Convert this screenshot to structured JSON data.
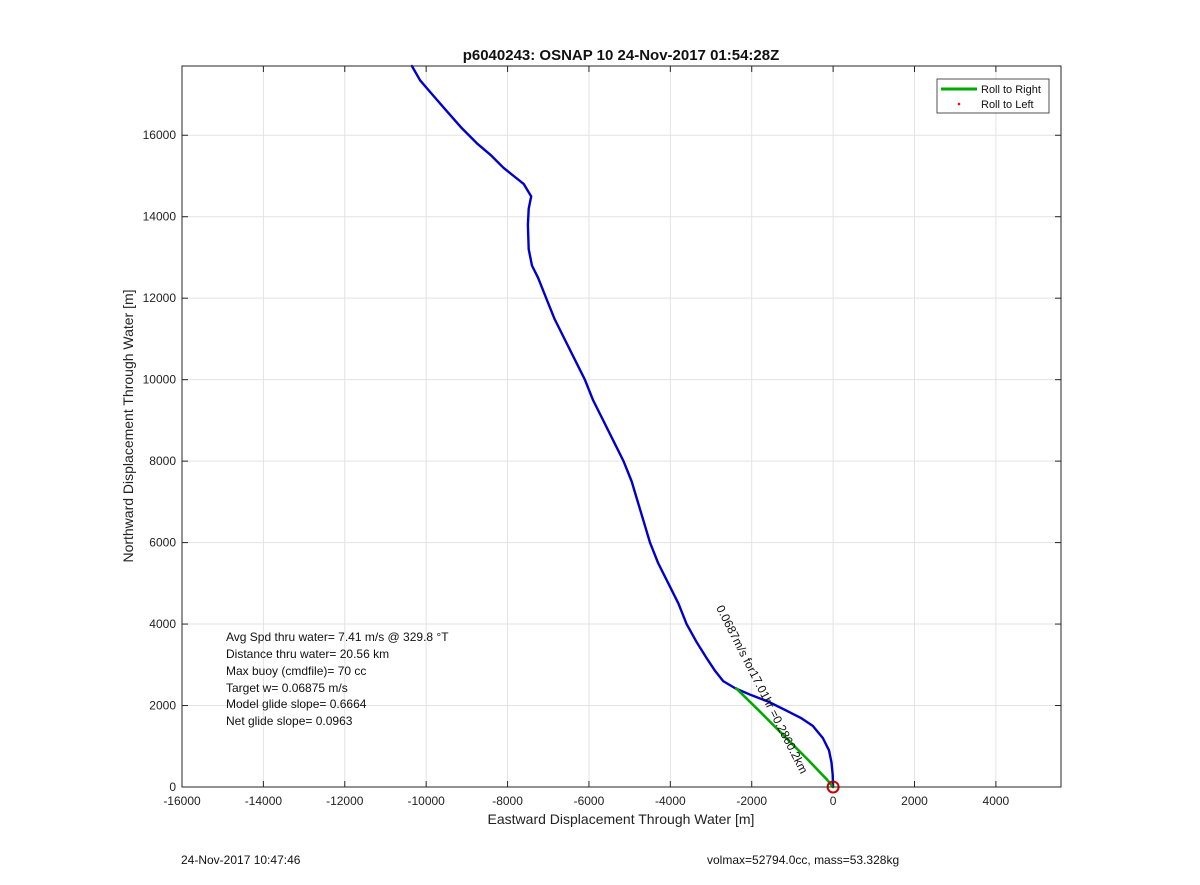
{
  "chart_data": {
    "type": "line",
    "title": "p6040243: OSNAP 10 24-Nov-2017 01:54:28Z",
    "xlabel": "Eastward Displacement Through Water [m]",
    "ylabel": "Northward Displacement Through Water [m]",
    "xlim": [
      -16000,
      5600
    ],
    "ylim": [
      0,
      17700
    ],
    "xticks": [
      -16000,
      -14000,
      -12000,
      -10000,
      -8000,
      -6000,
      -4000,
      -2000,
      0,
      2000,
      4000
    ],
    "yticks": [
      0,
      2000,
      4000,
      6000,
      8000,
      10000,
      12000,
      14000,
      16000
    ],
    "grid": true,
    "legend": {
      "position": "top-right",
      "entries": [
        {
          "label": "Roll to Right",
          "color": "#00aa00",
          "style": "line"
        },
        {
          "label": "Roll to Left",
          "color": "#ff0000",
          "style": "dot"
        }
      ]
    },
    "series": [
      {
        "color": "#0000cc",
        "x": [
          0,
          -10,
          -40,
          -100,
          -250,
          -500,
          -800,
          -1200,
          -1600,
          -2000,
          -2400,
          -2700,
          -2900,
          -3100,
          -3350,
          -3600,
          -3800,
          -4050,
          -4300,
          -4500,
          -4650,
          -4800,
          -4950,
          -5150,
          -5400,
          -5650,
          -5900,
          -6100,
          -6350,
          -6600,
          -6850,
          -7050,
          -7250,
          -7400,
          -7480,
          -7490,
          -7500,
          -7480,
          -7420,
          -7600,
          -7850,
          -8100,
          -8400,
          -8750,
          -9150,
          -9500,
          -9850,
          -10150,
          -10350
        ],
        "y": [
          0,
          300,
          600,
          900,
          1200,
          1500,
          1700,
          1900,
          2100,
          2250,
          2420,
          2600,
          2850,
          3150,
          3550,
          4000,
          4500,
          5000,
          5500,
          6000,
          6500,
          7000,
          7500,
          8000,
          8500,
          9000,
          9500,
          10000,
          10500,
          11000,
          11500,
          12000,
          12500,
          12800,
          13200,
          13500,
          13800,
          14200,
          14500,
          14800,
          15000,
          15200,
          15500,
          15800,
          16200,
          16600,
          17000,
          17350,
          17700
        ]
      },
      {
        "color": "#00aa00",
        "x": [
          -2380,
          -1800,
          -1200,
          -600,
          -150,
          0
        ],
        "y": [
          2420,
          1850,
          1250,
          650,
          180,
          0
        ]
      }
    ],
    "marker": {
      "x": 0,
      "y": 0,
      "color": "#cc0000"
    },
    "annotation": {
      "text": "0.0687m/s for17.01hr =0.2860.2km",
      "x": -2880,
      "y": 4400,
      "angle": 63
    },
    "stats": [
      "Avg Spd thru water=  7.41 m/s @ 329.8 °T",
      "Distance thru water= 20.56 km",
      "Max buoy (cmdfile)= 70 cc",
      "Target w= 0.06875 m/s",
      "Model glide slope= 0.6664",
      "Net glide slope= 0.0963"
    ]
  },
  "footer": {
    "timestamp": "24-Nov-2017 10:47:46",
    "volume_mass": "volmax=52794.0cc, mass=53.328kg"
  }
}
